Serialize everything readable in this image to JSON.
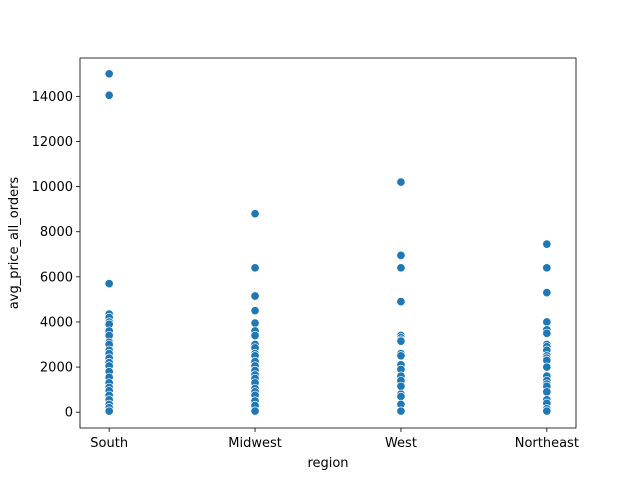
{
  "chart_data": {
    "type": "scatter",
    "title": "",
    "xlabel": "region",
    "ylabel": "avg_price_all_orders",
    "categories": [
      "South",
      "Midwest",
      "West",
      "Northeast"
    ],
    "ylim": [
      -700,
      15700
    ],
    "yticks": [
      0,
      2000,
      4000,
      6000,
      8000,
      10000,
      12000,
      14000
    ],
    "ytick_labels": [
      "0",
      "2000",
      "4000",
      "6000",
      "8000",
      "10000",
      "12000",
      "14000"
    ],
    "grid": false,
    "marker_color": "#1f77b4",
    "points": [
      {
        "x": "South",
        "y": 15000
      },
      {
        "x": "South",
        "y": 14050
      },
      {
        "x": "South",
        "y": 5700
      },
      {
        "x": "South",
        "y": 4350
      },
      {
        "x": "South",
        "y": 4200
      },
      {
        "x": "South",
        "y": 4000
      },
      {
        "x": "South",
        "y": 3900
      },
      {
        "x": "South",
        "y": 3600
      },
      {
        "x": "South",
        "y": 3400
      },
      {
        "x": "South",
        "y": 3100
      },
      {
        "x": "South",
        "y": 3000
      },
      {
        "x": "South",
        "y": 2750
      },
      {
        "x": "South",
        "y": 2600
      },
      {
        "x": "South",
        "y": 2400
      },
      {
        "x": "South",
        "y": 2200
      },
      {
        "x": "South",
        "y": 2050
      },
      {
        "x": "South",
        "y": 1800
      },
      {
        "x": "South",
        "y": 1550
      },
      {
        "x": "South",
        "y": 1300
      },
      {
        "x": "South",
        "y": 1100
      },
      {
        "x": "South",
        "y": 950
      },
      {
        "x": "South",
        "y": 750
      },
      {
        "x": "South",
        "y": 550
      },
      {
        "x": "South",
        "y": 350
      },
      {
        "x": "South",
        "y": 200
      },
      {
        "x": "South",
        "y": 50
      },
      {
        "x": "Midwest",
        "y": 8800
      },
      {
        "x": "Midwest",
        "y": 6400
      },
      {
        "x": "Midwest",
        "y": 5150
      },
      {
        "x": "Midwest",
        "y": 4500
      },
      {
        "x": "Midwest",
        "y": 3950
      },
      {
        "x": "Midwest",
        "y": 3600
      },
      {
        "x": "Midwest",
        "y": 3400
      },
      {
        "x": "Midwest",
        "y": 3000
      },
      {
        "x": "Midwest",
        "y": 2850
      },
      {
        "x": "Midwest",
        "y": 2600
      },
      {
        "x": "Midwest",
        "y": 2500
      },
      {
        "x": "Midwest",
        "y": 2250
      },
      {
        "x": "Midwest",
        "y": 2050
      },
      {
        "x": "Midwest",
        "y": 1850
      },
      {
        "x": "Midwest",
        "y": 1650
      },
      {
        "x": "Midwest",
        "y": 1500
      },
      {
        "x": "Midwest",
        "y": 1300
      },
      {
        "x": "Midwest",
        "y": 1050
      },
      {
        "x": "Midwest",
        "y": 900
      },
      {
        "x": "Midwest",
        "y": 750
      },
      {
        "x": "Midwest",
        "y": 500
      },
      {
        "x": "Midwest",
        "y": 300
      },
      {
        "x": "Midwest",
        "y": 50
      },
      {
        "x": "West",
        "y": 10200
      },
      {
        "x": "West",
        "y": 6950
      },
      {
        "x": "West",
        "y": 6400
      },
      {
        "x": "West",
        "y": 4900
      },
      {
        "x": "West",
        "y": 3400
      },
      {
        "x": "West",
        "y": 3300
      },
      {
        "x": "West",
        "y": 3200
      },
      {
        "x": "West",
        "y": 3150
      },
      {
        "x": "West",
        "y": 2600
      },
      {
        "x": "West",
        "y": 2500
      },
      {
        "x": "West",
        "y": 2100
      },
      {
        "x": "West",
        "y": 1900
      },
      {
        "x": "West",
        "y": 1600
      },
      {
        "x": "West",
        "y": 1400
      },
      {
        "x": "West",
        "y": 1150
      },
      {
        "x": "West",
        "y": 800
      },
      {
        "x": "West",
        "y": 700
      },
      {
        "x": "West",
        "y": 350
      },
      {
        "x": "West",
        "y": 50
      },
      {
        "x": "Northeast",
        "y": 7450
      },
      {
        "x": "Northeast",
        "y": 6400
      },
      {
        "x": "Northeast",
        "y": 5300
      },
      {
        "x": "Northeast",
        "y": 4000
      },
      {
        "x": "Northeast",
        "y": 3650
      },
      {
        "x": "Northeast",
        "y": 3500
      },
      {
        "x": "Northeast",
        "y": 3000
      },
      {
        "x": "Northeast",
        "y": 2900
      },
      {
        "x": "Northeast",
        "y": 2750
      },
      {
        "x": "Northeast",
        "y": 2500
      },
      {
        "x": "Northeast",
        "y": 2400
      },
      {
        "x": "Northeast",
        "y": 2300
      },
      {
        "x": "Northeast",
        "y": 2000
      },
      {
        "x": "Northeast",
        "y": 1600
      },
      {
        "x": "Northeast",
        "y": 1400
      },
      {
        "x": "Northeast",
        "y": 1250
      },
      {
        "x": "Northeast",
        "y": 1150
      },
      {
        "x": "Northeast",
        "y": 900
      },
      {
        "x": "Northeast",
        "y": 550
      },
      {
        "x": "Northeast",
        "y": 400
      },
      {
        "x": "Northeast",
        "y": 150
      },
      {
        "x": "Northeast",
        "y": 50
      }
    ]
  }
}
